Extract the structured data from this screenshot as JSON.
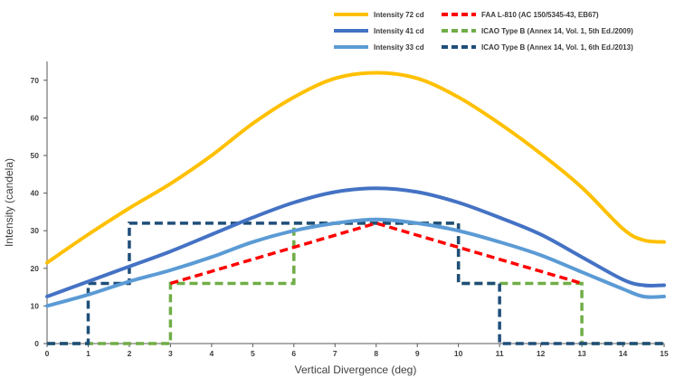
{
  "chart_data": {
    "type": "line",
    "title": "",
    "xlabel": "Vertical Divergence (deg)",
    "ylabel": "Intensity (candela)",
    "xlim": [
      0,
      15
    ],
    "ylim": [
      0,
      75
    ],
    "xticks": [
      0,
      1,
      2,
      3,
      4,
      5,
      6,
      7,
      8,
      9,
      10,
      11,
      12,
      13,
      14,
      15
    ],
    "yticks": [
      0,
      10,
      20,
      30,
      40,
      50,
      60,
      70
    ],
    "grid": false,
    "legend_position": "top-right",
    "series": [
      {
        "name": "Intensity 72 cd",
        "color": "#FFC000",
        "style": "solid",
        "x": [
          0,
          1,
          2,
          3,
          4,
          5,
          6,
          7,
          8,
          9,
          10,
          11,
          12,
          13,
          14,
          14.5,
          15
        ],
        "y": [
          21.5,
          29,
          36,
          42.5,
          50,
          58.5,
          65.5,
          70.5,
          72,
          70.5,
          65.5,
          58.5,
          50.5,
          41.5,
          30.5,
          27.5,
          27
        ]
      },
      {
        "name": "Intensity 41 cd",
        "color": "#4472C4",
        "style": "solid",
        "x": [
          0,
          1,
          2,
          3,
          4,
          5,
          6,
          7,
          8,
          9,
          10,
          11,
          12,
          13,
          14,
          14.5,
          15
        ],
        "y": [
          12.5,
          16.5,
          20.5,
          24.5,
          29,
          33.5,
          37.5,
          40.3,
          41.3,
          40.3,
          37.5,
          33.5,
          29,
          23,
          17,
          15.5,
          15.5
        ]
      },
      {
        "name": "Intensity 33 cd",
        "color": "#5B9BD5",
        "style": "solid",
        "x": [
          0,
          1,
          2,
          3,
          4,
          5,
          6,
          7,
          8,
          9,
          10,
          11,
          12,
          13,
          14,
          14.5,
          15
        ],
        "y": [
          10,
          13,
          16.5,
          19.5,
          23,
          27,
          30,
          32,
          33,
          32,
          30,
          27,
          23.5,
          19,
          14.5,
          12.5,
          12.5
        ]
      },
      {
        "name": "FAA L-810 (AC 150/5345-43, EB67)",
        "color": "#FF0000",
        "style": "dashed",
        "x": [
          3,
          8,
          13
        ],
        "y": [
          16,
          32,
          16
        ]
      },
      {
        "name": "ICAO Type B (Annex 14, Vol. 1, 5th Ed./2009)",
        "color": "#70AD47",
        "style": "dashed",
        "x": [
          0,
          3,
          3,
          6,
          6,
          10,
          10,
          13,
          13,
          15
        ],
        "y": [
          0,
          0,
          16,
          16,
          32,
          32,
          16,
          16,
          0,
          0
        ]
      },
      {
        "name": "ICAO Type B (Annex 14, Vol. 1, 6th Ed./2013)",
        "color": "#1F4E79",
        "style": "dashed",
        "x": [
          0,
          1,
          1,
          2,
          2,
          10,
          10,
          11,
          11,
          15
        ],
        "y": [
          0,
          0,
          16,
          16,
          32,
          32,
          16,
          16,
          0,
          0
        ]
      }
    ]
  }
}
